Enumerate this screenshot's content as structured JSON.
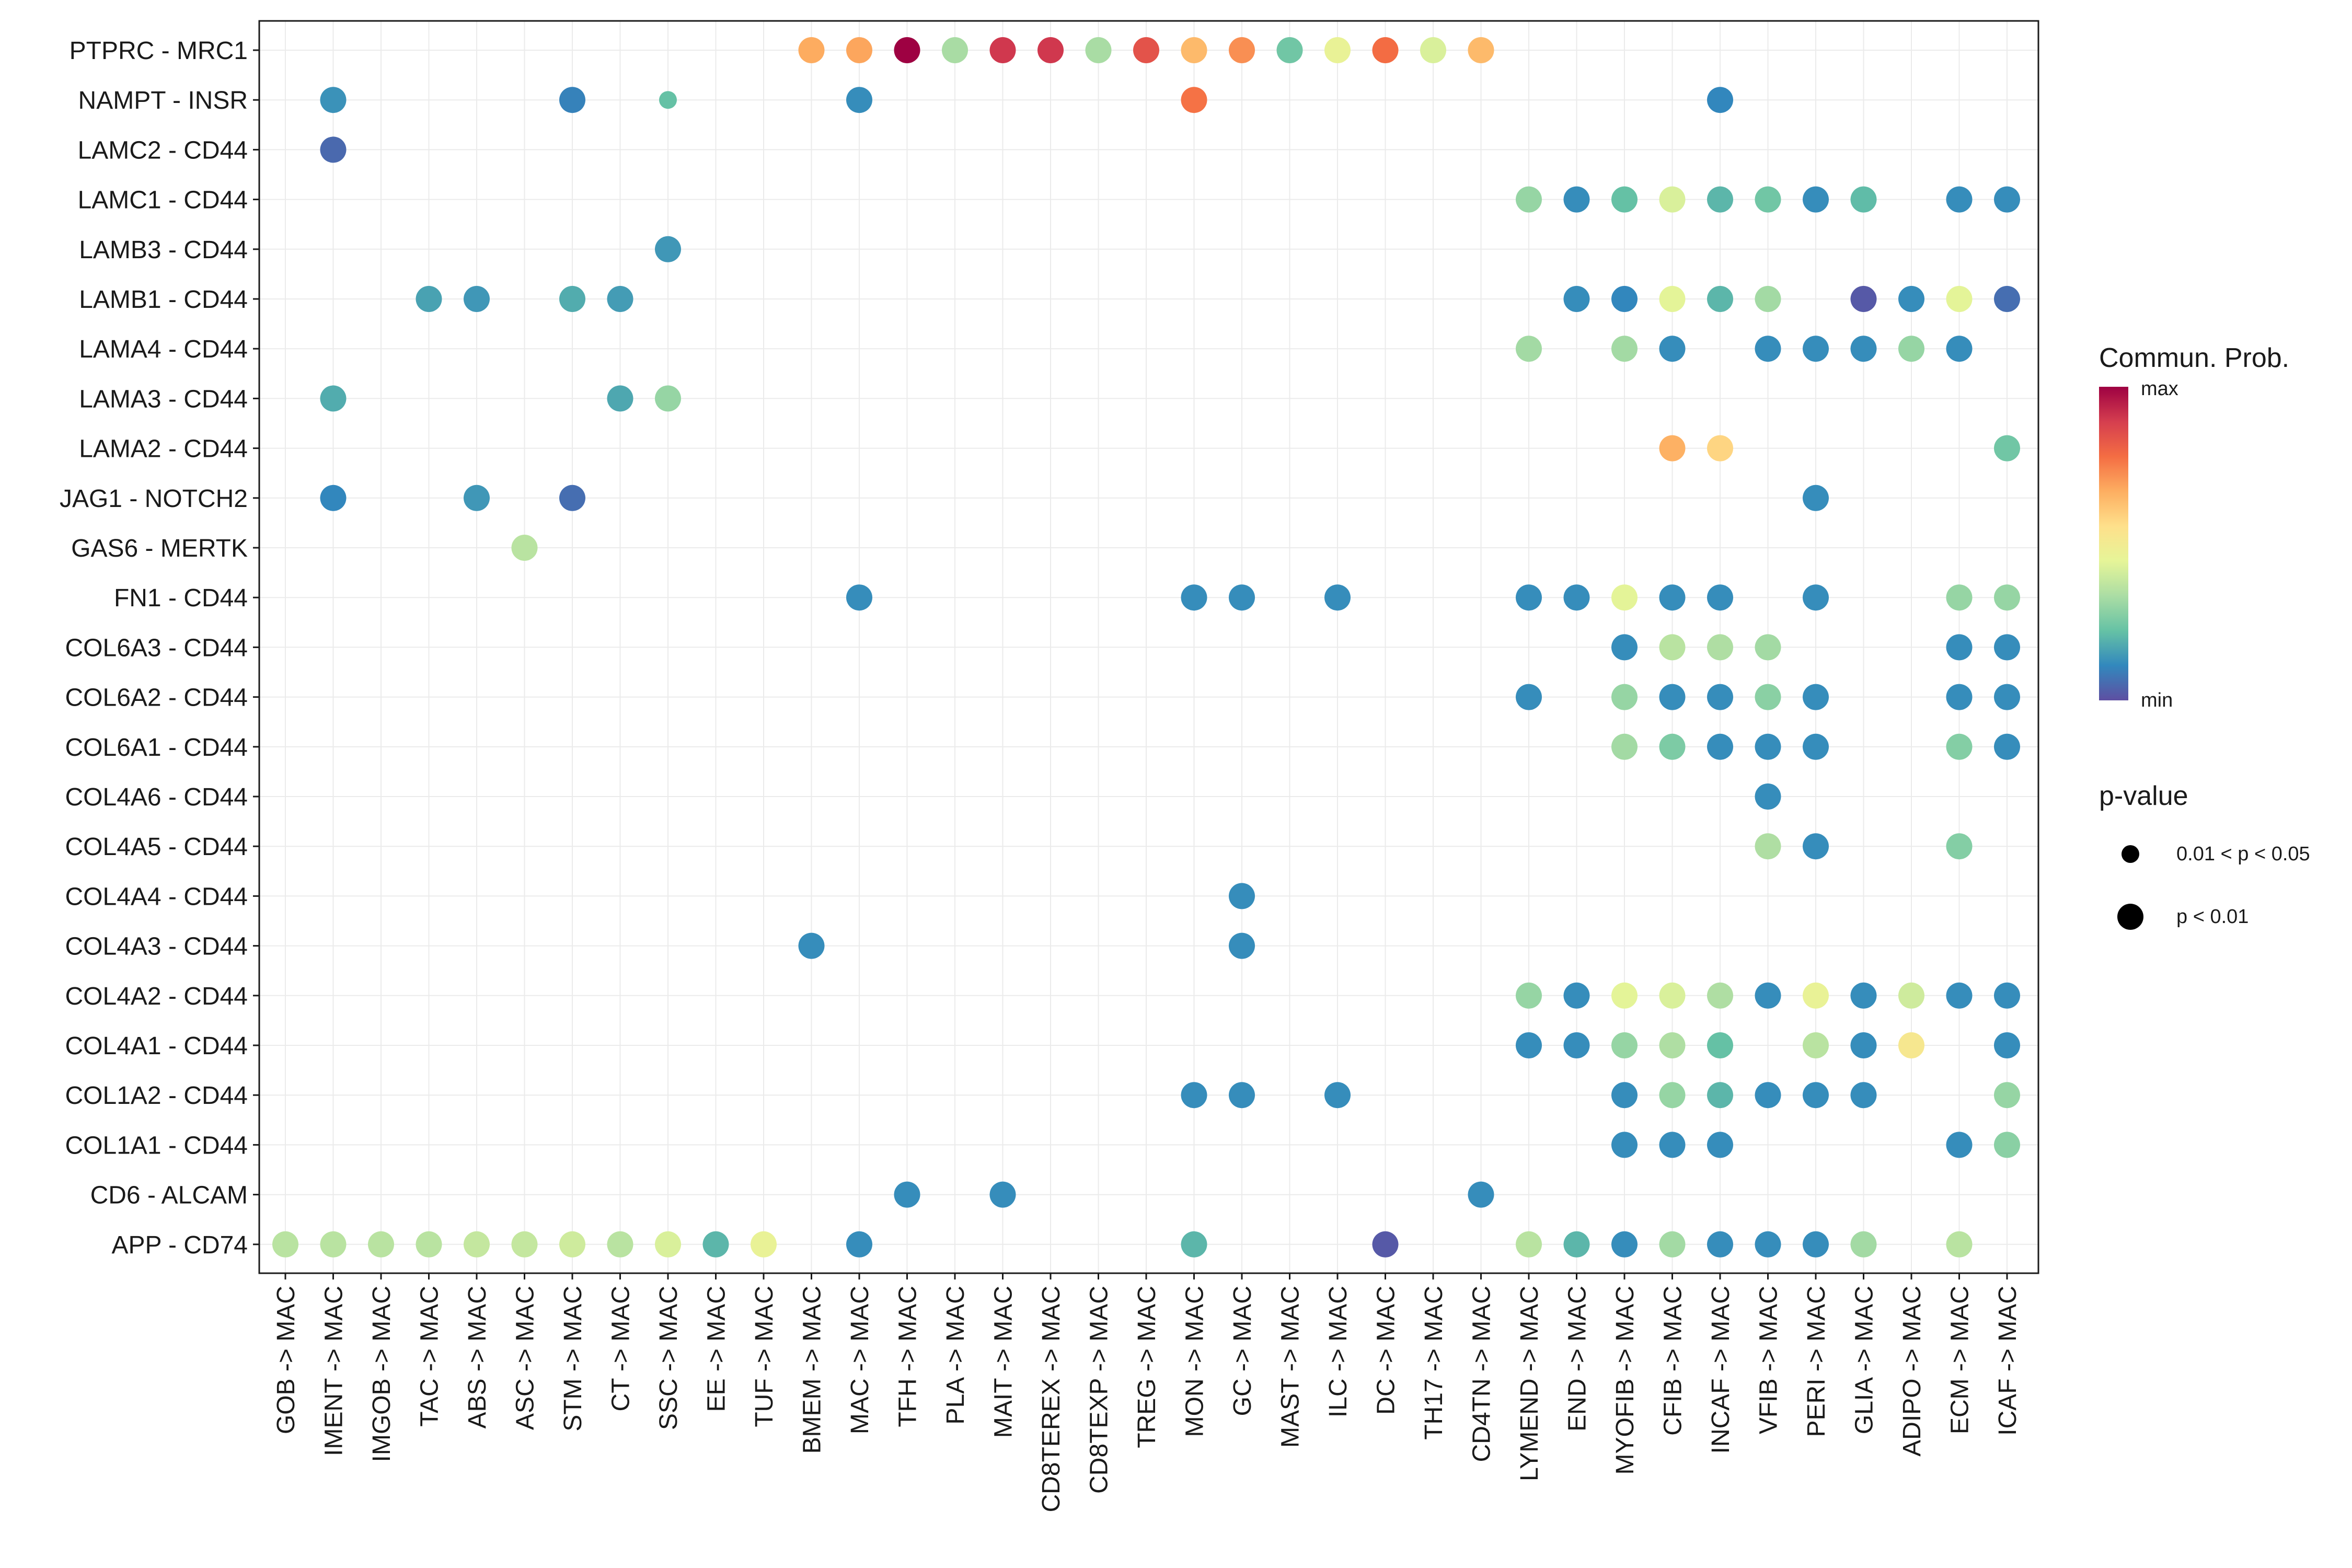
{
  "chart_data": {
    "type": "dotplot",
    "title": "",
    "xlabel": "",
    "ylabel": "",
    "color_scale": [
      "#5e4fa2",
      "#3288bd",
      "#66c2a5",
      "#abdda4",
      "#e6f598",
      "#fee08b",
      "#fdae61",
      "#f46d43",
      "#d53e4f",
      "#9e0142"
    ],
    "y_categories": [
      "PTPRC - MRC1",
      "NAMPT - INSR",
      "LAMC2 - CD44",
      "LAMC1 - CD44",
      "LAMB3 - CD44",
      "LAMB1 - CD44",
      "LAMA4 - CD44",
      "LAMA3 - CD44",
      "LAMA2 - CD44",
      "JAG1 - NOTCH2",
      "GAS6 - MERTK",
      "FN1 - CD44",
      "COL6A3 - CD44",
      "COL6A2 - CD44",
      "COL6A1 - CD44",
      "COL4A6 - CD44",
      "COL4A5 - CD44",
      "COL4A4 - CD44",
      "COL4A3 - CD44",
      "COL4A2 - CD44",
      "COL4A1 - CD44",
      "COL1A2 - CD44",
      "COL1A1 - CD44",
      "CD6 - ALCAM",
      "APP - CD74"
    ],
    "x_categories": [
      "GOB -> MAC",
      "IMENT -> MAC",
      "IMGOB -> MAC",
      "TAC -> MAC",
      "ABS -> MAC",
      "ASC -> MAC",
      "STM -> MAC",
      "CT -> MAC",
      "SSC -> MAC",
      "EE -> MAC",
      "TUF -> MAC",
      "BMEM -> MAC",
      "MAC -> MAC",
      "TFH -> MAC",
      "PLA -> MAC",
      "MAIT -> MAC",
      "CD8TEREX -> MAC",
      "CD8TEXP -> MAC",
      "TREG -> MAC",
      "MON -> MAC",
      "GC -> MAC",
      "MAST -> MAC",
      "ILC -> MAC",
      "DC -> MAC",
      "TH17 -> MAC",
      "CD4TN -> MAC",
      "LYMEND -> MAC",
      "END -> MAC",
      "MYOFIB -> MAC",
      "CFIB -> MAC",
      "INCAF -> MAC",
      "VFIB -> MAC",
      "PERI -> MAC",
      "GLIA -> MAC",
      "ADIPO -> MAC",
      "ECM -> MAC",
      "ICAF -> MAC"
    ],
    "points_note": "each point: [row_index, col_index, commun_prob (0=min,1=max), pvalue_class (1 = 0.01<p<0.05, 2 = p<0.01)]",
    "points": [
      [
        0,
        11,
        0.67,
        2
      ],
      [
        0,
        12,
        0.68,
        2
      ],
      [
        0,
        13,
        1.0,
        2
      ],
      [
        0,
        14,
        0.33,
        2
      ],
      [
        0,
        15,
        0.9,
        2
      ],
      [
        0,
        16,
        0.9,
        2
      ],
      [
        0,
        17,
        0.33,
        2
      ],
      [
        0,
        18,
        0.84,
        2
      ],
      [
        0,
        19,
        0.64,
        2
      ],
      [
        0,
        20,
        0.72,
        2
      ],
      [
        0,
        21,
        0.24,
        2
      ],
      [
        0,
        22,
        0.46,
        2
      ],
      [
        0,
        23,
        0.78,
        2
      ],
      [
        0,
        24,
        0.42,
        2
      ],
      [
        0,
        25,
        0.64,
        2
      ],
      [
        1,
        1,
        0.13,
        2
      ],
      [
        1,
        6,
        0.1,
        2
      ],
      [
        1,
        8,
        0.22,
        1
      ],
      [
        1,
        12,
        0.12,
        2
      ],
      [
        1,
        19,
        0.77,
        2
      ],
      [
        1,
        30,
        0.11,
        2
      ],
      [
        2,
        1,
        0.05,
        2
      ],
      [
        3,
        26,
        0.3,
        2
      ],
      [
        3,
        27,
        0.12,
        2
      ],
      [
        3,
        28,
        0.22,
        2
      ],
      [
        3,
        29,
        0.42,
        2
      ],
      [
        3,
        30,
        0.2,
        2
      ],
      [
        3,
        31,
        0.24,
        2
      ],
      [
        3,
        32,
        0.12,
        2
      ],
      [
        3,
        33,
        0.21,
        2
      ],
      [
        3,
        35,
        0.12,
        2
      ],
      [
        3,
        36,
        0.12,
        2
      ],
      [
        4,
        8,
        0.14,
        2
      ],
      [
        5,
        3,
        0.16,
        2
      ],
      [
        5,
        4,
        0.14,
        2
      ],
      [
        5,
        6,
        0.18,
        2
      ],
      [
        5,
        7,
        0.15,
        2
      ],
      [
        5,
        27,
        0.12,
        2
      ],
      [
        5,
        28,
        0.11,
        2
      ],
      [
        5,
        29,
        0.44,
        2
      ],
      [
        5,
        30,
        0.2,
        2
      ],
      [
        5,
        31,
        0.32,
        2
      ],
      [
        5,
        33,
        0.02,
        2
      ],
      [
        5,
        34,
        0.12,
        2
      ],
      [
        5,
        35,
        0.44,
        2
      ],
      [
        5,
        36,
        0.06,
        2
      ],
      [
        6,
        26,
        0.32,
        2
      ],
      [
        6,
        28,
        0.32,
        2
      ],
      [
        6,
        29,
        0.12,
        2
      ],
      [
        6,
        31,
        0.12,
        2
      ],
      [
        6,
        32,
        0.12,
        2
      ],
      [
        6,
        33,
        0.12,
        2
      ],
      [
        6,
        34,
        0.3,
        2
      ],
      [
        6,
        35,
        0.12,
        2
      ],
      [
        7,
        1,
        0.18,
        2
      ],
      [
        7,
        7,
        0.17,
        2
      ],
      [
        7,
        8,
        0.3,
        2
      ],
      [
        8,
        29,
        0.66,
        2
      ],
      [
        8,
        30,
        0.58,
        2
      ],
      [
        8,
        36,
        0.24,
        2
      ],
      [
        9,
        1,
        0.11,
        2
      ],
      [
        9,
        4,
        0.14,
        2
      ],
      [
        9,
        6,
        0.06,
        2
      ],
      [
        9,
        32,
        0.12,
        2
      ],
      [
        10,
        5,
        0.36,
        2
      ],
      [
        11,
        12,
        0.12,
        2
      ],
      [
        11,
        19,
        0.12,
        2
      ],
      [
        11,
        20,
        0.12,
        2
      ],
      [
        11,
        22,
        0.12,
        2
      ],
      [
        11,
        26,
        0.12,
        2
      ],
      [
        11,
        27,
        0.12,
        2
      ],
      [
        11,
        28,
        0.44,
        2
      ],
      [
        11,
        29,
        0.12,
        2
      ],
      [
        11,
        30,
        0.12,
        2
      ],
      [
        11,
        32,
        0.12,
        2
      ],
      [
        11,
        35,
        0.3,
        2
      ],
      [
        11,
        36,
        0.3,
        2
      ],
      [
        12,
        28,
        0.12,
        2
      ],
      [
        12,
        29,
        0.36,
        2
      ],
      [
        12,
        30,
        0.34,
        2
      ],
      [
        12,
        31,
        0.32,
        2
      ],
      [
        12,
        35,
        0.12,
        2
      ],
      [
        12,
        36,
        0.12,
        2
      ],
      [
        13,
        26,
        0.12,
        2
      ],
      [
        13,
        28,
        0.3,
        2
      ],
      [
        13,
        29,
        0.12,
        2
      ],
      [
        13,
        30,
        0.12,
        2
      ],
      [
        13,
        31,
        0.28,
        2
      ],
      [
        13,
        32,
        0.12,
        2
      ],
      [
        13,
        35,
        0.12,
        2
      ],
      [
        13,
        36,
        0.12,
        2
      ],
      [
        14,
        28,
        0.32,
        2
      ],
      [
        14,
        29,
        0.26,
        2
      ],
      [
        14,
        30,
        0.12,
        2
      ],
      [
        14,
        31,
        0.12,
        2
      ],
      [
        14,
        32,
        0.12,
        2
      ],
      [
        14,
        35,
        0.27,
        2
      ],
      [
        14,
        36,
        0.12,
        2
      ],
      [
        15,
        31,
        0.12,
        2
      ],
      [
        16,
        31,
        0.34,
        2
      ],
      [
        16,
        32,
        0.12,
        2
      ],
      [
        16,
        35,
        0.27,
        2
      ],
      [
        17,
        20,
        0.12,
        2
      ],
      [
        18,
        11,
        0.12,
        2
      ],
      [
        18,
        20,
        0.12,
        2
      ],
      [
        19,
        26,
        0.3,
        2
      ],
      [
        19,
        27,
        0.12,
        2
      ],
      [
        19,
        28,
        0.44,
        2
      ],
      [
        19,
        29,
        0.42,
        2
      ],
      [
        19,
        30,
        0.34,
        2
      ],
      [
        19,
        31,
        0.12,
        2
      ],
      [
        19,
        32,
        0.46,
        2
      ],
      [
        19,
        33,
        0.12,
        2
      ],
      [
        19,
        34,
        0.4,
        2
      ],
      [
        19,
        35,
        0.12,
        2
      ],
      [
        19,
        36,
        0.12,
        2
      ],
      [
        20,
        26,
        0.12,
        2
      ],
      [
        20,
        27,
        0.12,
        2
      ],
      [
        20,
        28,
        0.3,
        2
      ],
      [
        20,
        29,
        0.34,
        2
      ],
      [
        20,
        30,
        0.22,
        2
      ],
      [
        20,
        32,
        0.36,
        2
      ],
      [
        20,
        33,
        0.12,
        2
      ],
      [
        20,
        34,
        0.52,
        2
      ],
      [
        20,
        36,
        0.12,
        2
      ],
      [
        21,
        19,
        0.12,
        2
      ],
      [
        21,
        20,
        0.12,
        2
      ],
      [
        21,
        22,
        0.12,
        2
      ],
      [
        21,
        28,
        0.12,
        2
      ],
      [
        21,
        29,
        0.3,
        2
      ],
      [
        21,
        30,
        0.2,
        2
      ],
      [
        21,
        31,
        0.12,
        2
      ],
      [
        21,
        32,
        0.12,
        2
      ],
      [
        21,
        33,
        0.12,
        2
      ],
      [
        21,
        36,
        0.3,
        2
      ],
      [
        22,
        28,
        0.12,
        2
      ],
      [
        22,
        29,
        0.12,
        2
      ],
      [
        22,
        30,
        0.12,
        2
      ],
      [
        22,
        35,
        0.12,
        2
      ],
      [
        22,
        36,
        0.28,
        2
      ],
      [
        23,
        13,
        0.12,
        2
      ],
      [
        23,
        15,
        0.12,
        2
      ],
      [
        23,
        25,
        0.12,
        2
      ],
      [
        24,
        0,
        0.36,
        2
      ],
      [
        24,
        1,
        0.36,
        2
      ],
      [
        24,
        2,
        0.36,
        2
      ],
      [
        24,
        3,
        0.36,
        2
      ],
      [
        24,
        4,
        0.38,
        2
      ],
      [
        24,
        5,
        0.38,
        2
      ],
      [
        24,
        6,
        0.4,
        2
      ],
      [
        24,
        7,
        0.36,
        2
      ],
      [
        24,
        8,
        0.42,
        2
      ],
      [
        24,
        9,
        0.2,
        2
      ],
      [
        24,
        10,
        0.46,
        2
      ],
      [
        24,
        12,
        0.12,
        2
      ],
      [
        24,
        19,
        0.2,
        2
      ],
      [
        24,
        23,
        0.02,
        2
      ],
      [
        24,
        26,
        0.36,
        2
      ],
      [
        24,
        27,
        0.2,
        2
      ],
      [
        24,
        28,
        0.12,
        2
      ],
      [
        24,
        29,
        0.32,
        2
      ],
      [
        24,
        30,
        0.12,
        2
      ],
      [
        24,
        31,
        0.12,
        2
      ],
      [
        24,
        32,
        0.12,
        2
      ],
      [
        24,
        33,
        0.32,
        2
      ],
      [
        24,
        35,
        0.36,
        2
      ]
    ],
    "legend": {
      "color_title": "Commun. Prob.",
      "color_max_label": "max",
      "color_min_label": "min",
      "size_title": "p-value",
      "size_labels": [
        "0.01 < p < 0.05",
        "p < 0.01"
      ],
      "position": "right"
    }
  }
}
